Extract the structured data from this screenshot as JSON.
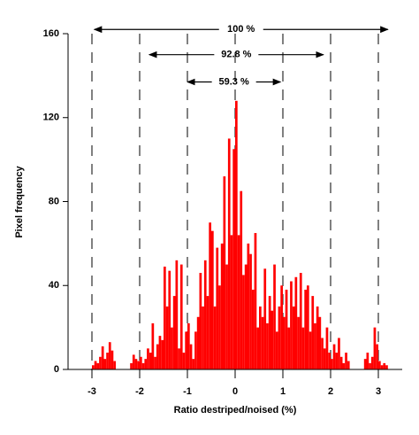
{
  "chart_data": {
    "type": "histogram",
    "xlabel": "Ratio destriped/noised (%)",
    "ylabel": "Pixel frequency",
    "color": "#ff0000",
    "xlim": [
      -3.5,
      3.5
    ],
    "ylim": [
      0,
      160
    ],
    "xticks": [
      -3,
      -2,
      -1,
      0,
      1,
      2,
      3
    ],
    "yticks": [
      0,
      40,
      80,
      120,
      160
    ],
    "grid": true,
    "bins": [
      -3,
      -2.95,
      -2.9,
      -2.85,
      -2.8,
      -2.75,
      -2.7,
      -2.65,
      -2.6,
      -2.55,
      -2.5,
      -2.45,
      -2.4,
      -2.35,
      -2.3,
      -2.25,
      -2.2,
      -2.15,
      -2.1,
      -2.05,
      -2,
      -1.95,
      -1.9,
      -1.85,
      -1.8,
      -1.75,
      -1.7,
      -1.65,
      -1.6,
      -1.55,
      -1.5,
      -1.45,
      -1.4,
      -1.35,
      -1.3,
      -1.25,
      -1.2,
      -1.15,
      -1.1,
      -1.05,
      -1,
      -0.95,
      -0.9,
      -0.85,
      -0.8,
      -0.75,
      -0.7,
      -0.65,
      -0.6,
      -0.55,
      -0.5,
      -0.45,
      -0.4,
      -0.35,
      -0.3,
      -0.25,
      -0.2,
      -0.15,
      -0.1,
      -0.05,
      0,
      0.05,
      0.1,
      0.15,
      0.2,
      0.25,
      0.3,
      0.35,
      0.4,
      0.45,
      0.5,
      0.55,
      0.6,
      0.65,
      0.7,
      0.75,
      0.8,
      0.85,
      0.9,
      0.95,
      1,
      1.05,
      1.1,
      1.15,
      1.2,
      1.25,
      1.3,
      1.35,
      1.4,
      1.45,
      1.5,
      1.55,
      1.6,
      1.65,
      1.7,
      1.75,
      1.8,
      1.85,
      1.9,
      1.95,
      2,
      2.05,
      2.1,
      2.15,
      2.2,
      2.25,
      2.3,
      2.35,
      2.4,
      2.45,
      2.5,
      2.55,
      2.6,
      2.65,
      2.7,
      2.75,
      2.8,
      2.85,
      2.9,
      2.95,
      3,
      3.05,
      3.1,
      3.15,
      3.2
    ],
    "counts": [
      2,
      4,
      3,
      6,
      11,
      5,
      8,
      13,
      9,
      4,
      0,
      0,
      0,
      0,
      0,
      0,
      3,
      7,
      5,
      4,
      6,
      3,
      5,
      10,
      8,
      22,
      6,
      12,
      16,
      14,
      49,
      30,
      47,
      20,
      35,
      52,
      10,
      50,
      8,
      18,
      22,
      12,
      5,
      18,
      25,
      46,
      30,
      52,
      35,
      70,
      66,
      30,
      58,
      40,
      60,
      92,
      50,
      110,
      64,
      105,
      128,
      64,
      85,
      45,
      50,
      60,
      55,
      38,
      65,
      20,
      30,
      25,
      48,
      22,
      35,
      28,
      50,
      18,
      30,
      40,
      25,
      38,
      20,
      42,
      30,
      44,
      25,
      46,
      20,
      38,
      40,
      18,
      35,
      22,
      30,
      25,
      15,
      10,
      20,
      8,
      5,
      12,
      8,
      15,
      6,
      3,
      8,
      4,
      0,
      0,
      0,
      0,
      0,
      0,
      5,
      8,
      3,
      6,
      20,
      12,
      4,
      2,
      3,
      2
    ],
    "annotations": [
      {
        "text": "100 %",
        "x": [
          -2.95,
          3.2
        ],
        "y": 162
      },
      {
        "text": "92.8 %",
        "x": [
          -1.8,
          1.85
        ],
        "y": 150
      },
      {
        "text": "59.3 %",
        "x": [
          -1,
          0.95
        ],
        "y": 137
      }
    ]
  }
}
